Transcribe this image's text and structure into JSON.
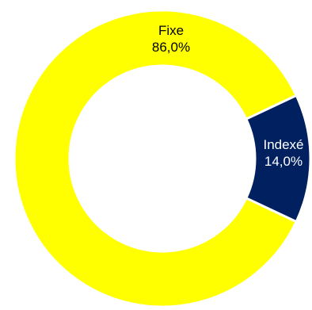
{
  "chart_data": {
    "type": "pie",
    "categories": [
      "Fixe",
      "Indexé"
    ],
    "values": [
      86.0,
      14.0
    ],
    "percent_labels": [
      "86,0%",
      "14,0%"
    ],
    "colors": [
      "#FFFF00",
      "#002060"
    ],
    "label_colors": [
      "#000000",
      "#ffffff"
    ],
    "title": "",
    "legend": "none",
    "hole": true
  }
}
